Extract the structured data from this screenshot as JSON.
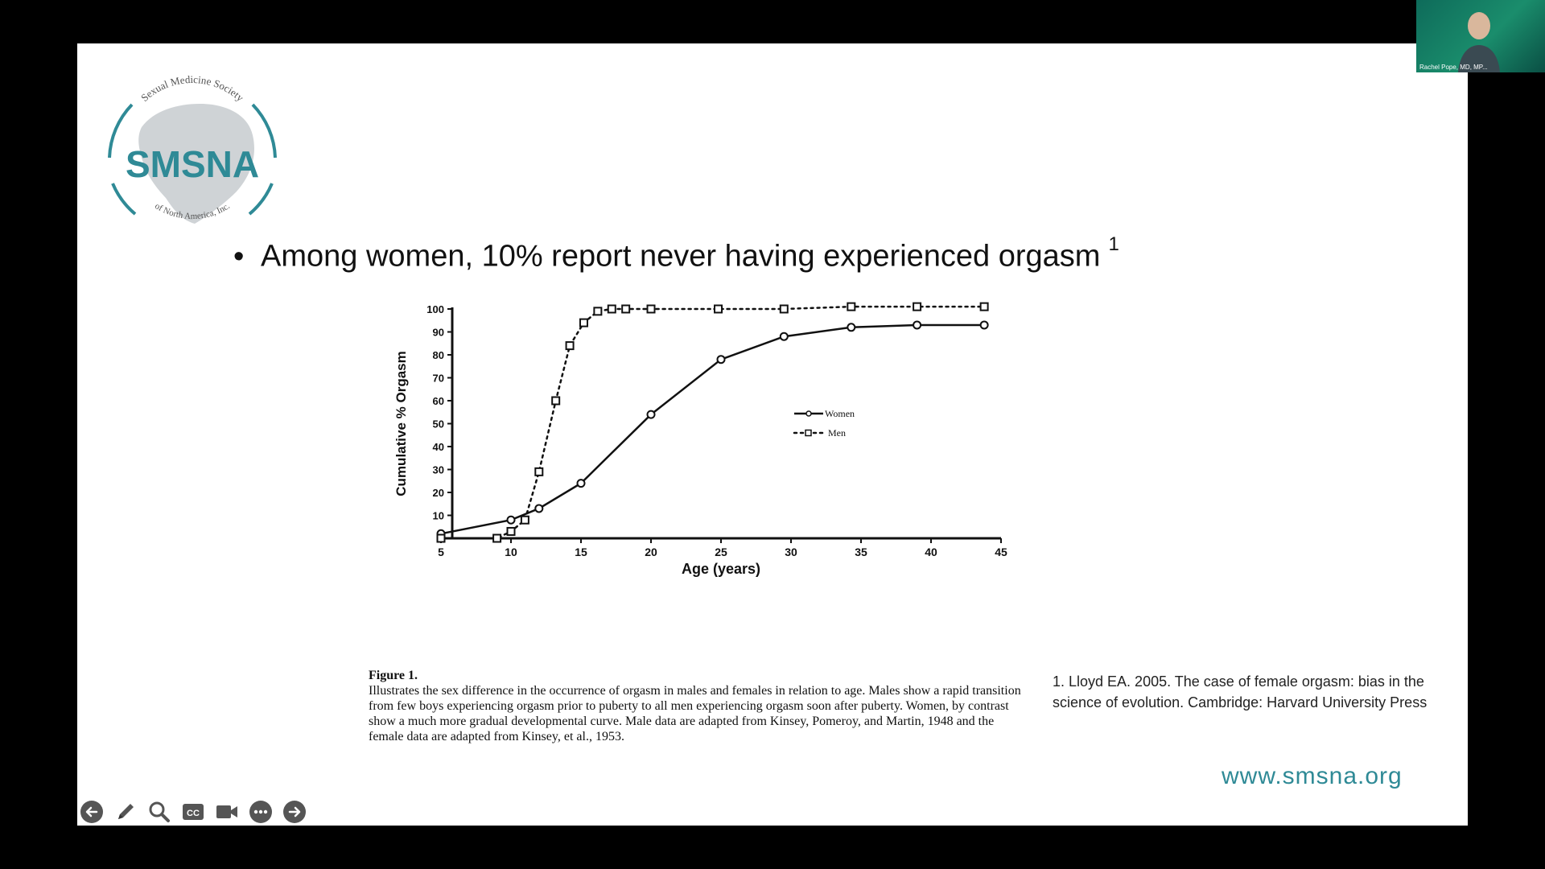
{
  "slide": {
    "logo": {
      "top_arc_text": "Sexual Medicine Society",
      "acronym": "SMSNA",
      "bottom_arc_text": "of North America, Inc."
    },
    "bullet_text": "Among women, 10% report never having experienced orgasm",
    "bullet_superscript": "1",
    "figure_caption": {
      "title": "Figure 1.",
      "body": "Illustrates the sex difference in the occurrence of orgasm in males and females in relation to age. Males show a rapid transition from few boys experiencing orgasm prior to puberty to all men experiencing orgasm soon after puberty. Women, by contrast show a much more gradual developmental curve. Male data are adapted from Kinsey, Pomeroy, and Martin, 1948 and the female data are adapted from Kinsey, et al., 1953."
    },
    "reference": "1. Lloyd EA. 2005. The case of female orgasm: bias in the science of evolution. Cambridge: Harvard University Press",
    "website": "www.smsna.org",
    "brand_color": "#2f8a96"
  },
  "chart_data": {
    "type": "line",
    "title": "",
    "xlabel": "Age (years)",
    "ylabel": "Cumulative % Orgasm",
    "xlim": [
      5,
      45
    ],
    "ylim": [
      0,
      100
    ],
    "x_ticks": [
      "5",
      "10",
      "15",
      "20",
      "25",
      "30",
      "35",
      "40",
      "45"
    ],
    "y_ticks": [
      "0",
      "10",
      "20",
      "30",
      "40",
      "50",
      "60",
      "70",
      "80",
      "90",
      "100"
    ],
    "grid": false,
    "legend_position": "center-right",
    "series": [
      {
        "name": "Women",
        "style": "solid",
        "marker": "circle",
        "points": [
          [
            5,
            2
          ],
          [
            10,
            8
          ],
          [
            12,
            13
          ],
          [
            15,
            24
          ],
          [
            20,
            54
          ],
          [
            25,
            78
          ],
          [
            29.5,
            88
          ],
          [
            34.3,
            92
          ],
          [
            39,
            93
          ],
          [
            43.8,
            93
          ]
        ]
      },
      {
        "name": "Men",
        "style": "dotted",
        "marker": "square",
        "points": [
          [
            5,
            0
          ],
          [
            9,
            0
          ],
          [
            10,
            3
          ],
          [
            11,
            8
          ],
          [
            12,
            29
          ],
          [
            13.2,
            60
          ],
          [
            14.2,
            84
          ],
          [
            15.2,
            94
          ],
          [
            16.2,
            99
          ],
          [
            17.2,
            100
          ],
          [
            18.2,
            100
          ],
          [
            20,
            100
          ],
          [
            24.8,
            100
          ],
          [
            29.5,
            100
          ],
          [
            34.3,
            101
          ],
          [
            39,
            101
          ],
          [
            43.8,
            101
          ]
        ]
      }
    ]
  },
  "toolbar": {
    "icons": [
      "arrow-left-icon",
      "pen-icon",
      "magnifier-icon",
      "closed-captions-icon",
      "video-camera-icon",
      "more-options-icon",
      "arrow-right-icon"
    ]
  },
  "video_thumbnail": {
    "participant_name": "Rachel Pope, MD, MP..."
  }
}
